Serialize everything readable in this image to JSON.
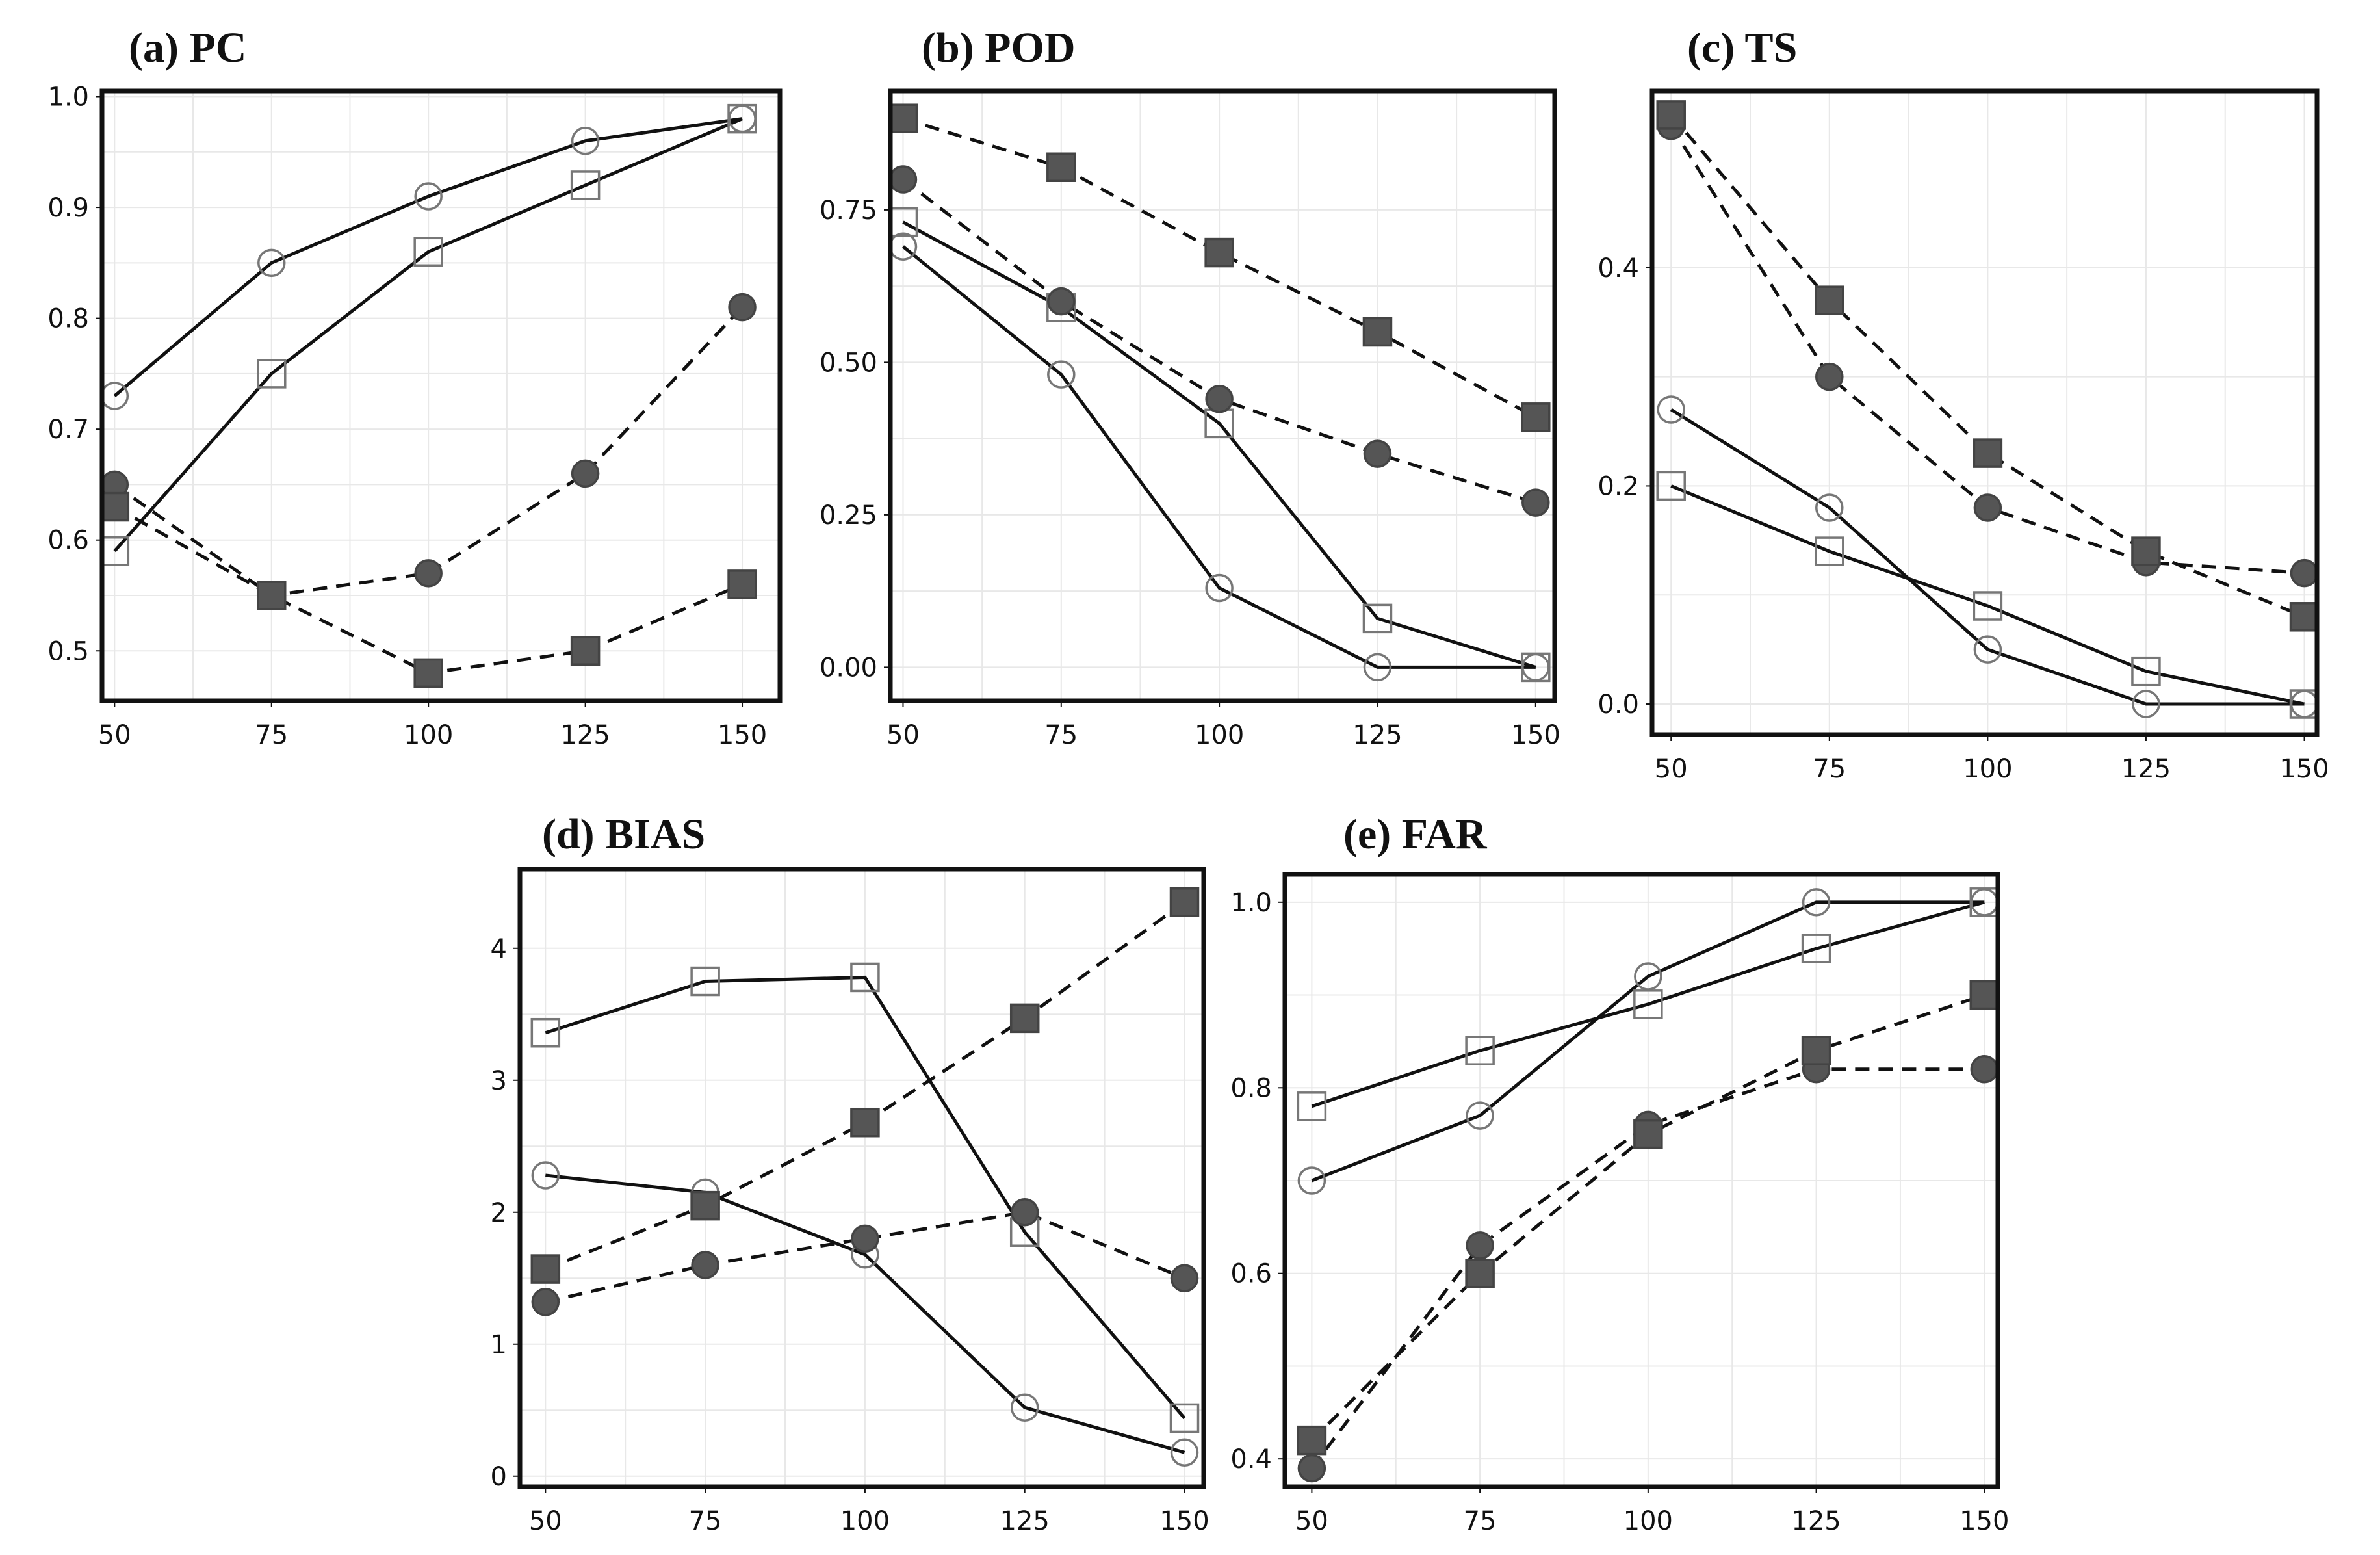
{
  "chart_data": [
    {
      "id": "pc",
      "type": "line",
      "title": "(a) PC",
      "xlabel": "",
      "ylabel": "",
      "x": [
        50,
        75,
        100,
        125,
        150
      ],
      "xlim": [
        48,
        156
      ],
      "ylim": [
        0.455,
        1.005
      ],
      "xticks": [
        "50",
        "75",
        "100",
        "125",
        "150"
      ],
      "yticks": [
        {
          "v": 0.5,
          "label": "0.5"
        },
        {
          "v": 0.6,
          "label": "0.6"
        },
        {
          "v": 0.7,
          "label": "0.7"
        },
        {
          "v": 0.8,
          "label": "0.8"
        },
        {
          "v": 0.9,
          "label": "0.9"
        },
        {
          "v": 1.0,
          "label": "1.0"
        }
      ],
      "grid": true,
      "series": [
        {
          "name": "open-circle",
          "marker": "circle",
          "filled": false,
          "line": "solid",
          "values": [
            0.73,
            0.85,
            0.91,
            0.96,
            0.98
          ]
        },
        {
          "name": "open-square",
          "marker": "square",
          "filled": false,
          "line": "solid",
          "values": [
            0.59,
            0.75,
            0.86,
            0.92,
            0.98
          ]
        },
        {
          "name": "filled-circle",
          "marker": "circle",
          "filled": true,
          "line": "dashed",
          "values": [
            0.65,
            0.55,
            0.57,
            0.66,
            0.81
          ]
        },
        {
          "name": "filled-square",
          "marker": "square",
          "filled": true,
          "line": "dashed",
          "values": [
            0.63,
            0.55,
            0.48,
            0.5,
            0.56
          ]
        }
      ]
    },
    {
      "id": "pod",
      "type": "line",
      "title": "(b) POD",
      "xlabel": "",
      "ylabel": "",
      "x": [
        50,
        75,
        100,
        125,
        150
      ],
      "xlim": [
        48,
        153
      ],
      "ylim": [
        -0.055,
        0.945
      ],
      "xticks": [
        "50",
        "75",
        "100",
        "125",
        "150"
      ],
      "yticks": [
        {
          "v": 0.0,
          "label": "0.00"
        },
        {
          "v": 0.25,
          "label": "0.25"
        },
        {
          "v": 0.5,
          "label": "0.50"
        },
        {
          "v": 0.75,
          "label": "0.75"
        }
      ],
      "grid": true,
      "series": [
        {
          "name": "open-circle",
          "marker": "circle",
          "filled": false,
          "line": "solid",
          "values": [
            0.69,
            0.48,
            0.13,
            0.0,
            0.0
          ]
        },
        {
          "name": "open-square",
          "marker": "square",
          "filled": false,
          "line": "solid",
          "values": [
            0.73,
            0.59,
            0.4,
            0.08,
            0.0
          ]
        },
        {
          "name": "filled-circle",
          "marker": "circle",
          "filled": true,
          "line": "dashed",
          "values": [
            0.8,
            0.6,
            0.44,
            0.35,
            0.27
          ]
        },
        {
          "name": "filled-square",
          "marker": "square",
          "filled": true,
          "line": "dashed",
          "values": [
            0.9,
            0.82,
            0.68,
            0.55,
            0.41
          ]
        }
      ]
    },
    {
      "id": "ts",
      "type": "line",
      "title": "(c) TS",
      "xlabel": "",
      "ylabel": "",
      "x": [
        50,
        75,
        100,
        125,
        150
      ],
      "xlim": [
        47,
        152
      ],
      "ylim": [
        -0.028,
        0.562
      ],
      "xticks": [
        "50",
        "75",
        "100",
        "125",
        "150"
      ],
      "yticks": [
        {
          "v": 0.0,
          "label": "0.0"
        },
        {
          "v": 0.2,
          "label": "0.2"
        },
        {
          "v": 0.4,
          "label": "0.4"
        }
      ],
      "grid": true,
      "series": [
        {
          "name": "open-circle",
          "marker": "circle",
          "filled": false,
          "line": "solid",
          "values": [
            0.27,
            0.18,
            0.05,
            0.0,
            0.0
          ]
        },
        {
          "name": "open-square",
          "marker": "square",
          "filled": false,
          "line": "solid",
          "values": [
            0.2,
            0.14,
            0.09,
            0.03,
            0.0
          ]
        },
        {
          "name": "filled-circle",
          "marker": "circle",
          "filled": true,
          "line": "dashed",
          "values": [
            0.53,
            0.3,
            0.18,
            0.13,
            0.12
          ]
        },
        {
          "name": "filled-square",
          "marker": "square",
          "filled": true,
          "line": "dashed",
          "values": [
            0.54,
            0.37,
            0.23,
            0.14,
            0.08
          ]
        }
      ]
    },
    {
      "id": "bias",
      "type": "line",
      "title": "(d) BIAS",
      "xlabel": "",
      "ylabel": "",
      "x": [
        50,
        75,
        100,
        125,
        150
      ],
      "xlim": [
        46,
        153
      ],
      "ylim": [
        -0.08,
        4.6
      ],
      "xticks": [
        "50",
        "75",
        "100",
        "125",
        "150"
      ],
      "yticks": [
        {
          "v": 0,
          "label": "0"
        },
        {
          "v": 1,
          "label": "1"
        },
        {
          "v": 2,
          "label": "2"
        },
        {
          "v": 3,
          "label": "3"
        },
        {
          "v": 4,
          "label": "4"
        }
      ],
      "grid": true,
      "series": [
        {
          "name": "open-circle",
          "marker": "circle",
          "filled": false,
          "line": "solid",
          "values": [
            2.28,
            2.15,
            1.68,
            0.52,
            0.18
          ]
        },
        {
          "name": "open-square",
          "marker": "square",
          "filled": false,
          "line": "solid",
          "values": [
            3.36,
            3.75,
            3.78,
            1.85,
            0.44
          ]
        },
        {
          "name": "filled-circle",
          "marker": "circle",
          "filled": true,
          "line": "dashed",
          "values": [
            1.32,
            1.6,
            1.8,
            2.0,
            1.5
          ]
        },
        {
          "name": "filled-square",
          "marker": "square",
          "filled": true,
          "line": "dashed",
          "values": [
            1.57,
            2.05,
            2.68,
            3.47,
            4.35
          ]
        }
      ]
    },
    {
      "id": "far",
      "type": "line",
      "title": "(e) FAR",
      "xlabel": "",
      "ylabel": "",
      "x": [
        50,
        75,
        100,
        125,
        150
      ],
      "xlim": [
        46,
        152
      ],
      "ylim": [
        0.37,
        1.03
      ],
      "xticks": [
        "50",
        "75",
        "100",
        "125",
        "150"
      ],
      "yticks": [
        {
          "v": 0.4,
          "label": "0.4"
        },
        {
          "v": 0.6,
          "label": "0.6"
        },
        {
          "v": 0.8,
          "label": "0.8"
        },
        {
          "v": 1.0,
          "label": "1.0"
        }
      ],
      "grid": true,
      "series": [
        {
          "name": "open-circle",
          "marker": "circle",
          "filled": false,
          "line": "solid",
          "values": [
            0.7,
            0.77,
            0.92,
            1.0,
            1.0
          ]
        },
        {
          "name": "open-square",
          "marker": "square",
          "filled": false,
          "line": "solid",
          "values": [
            0.78,
            0.84,
            0.89,
            0.95,
            1.0
          ]
        },
        {
          "name": "filled-circle",
          "marker": "circle",
          "filled": true,
          "line": "dashed",
          "values": [
            0.39,
            0.63,
            0.76,
            0.82,
            0.82
          ]
        },
        {
          "name": "filled-square",
          "marker": "square",
          "filled": true,
          "line": "dashed",
          "values": [
            0.42,
            0.6,
            0.75,
            0.84,
            0.9
          ]
        }
      ]
    }
  ]
}
